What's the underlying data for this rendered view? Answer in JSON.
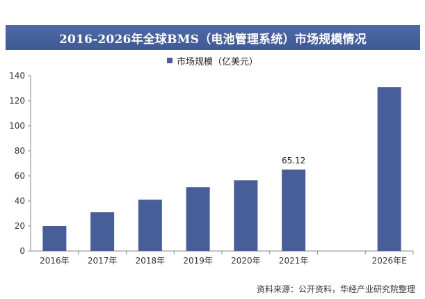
{
  "title": "2016-2026年全球BMS（电池管理系统）市场规模情况",
  "legend_label": "市场规模（亿美元）",
  "source_note": "资料来源：公开资料，华经产业研究院整理",
  "colors": {
    "bar": "#485e98",
    "title_bg": "#4a64a0",
    "axis": "#888888"
  },
  "chart_data": {
    "type": "bar",
    "categories": [
      "2016年",
      "2017年",
      "2018年",
      "2019年",
      "2020年",
      "2021年",
      "",
      "2026年E"
    ],
    "values": [
      20,
      31,
      41,
      51,
      56.5,
      65.12,
      null,
      131
    ],
    "data_labels": [
      "",
      "",
      "",
      "",
      "",
      "65.12",
      "",
      ""
    ],
    "ylim": [
      0,
      140
    ],
    "yticks": [
      0,
      20,
      40,
      60,
      80,
      100,
      120,
      140
    ],
    "ytick_labels": [
      "0",
      "20",
      "40",
      "60",
      "80",
      "100",
      "120",
      "140"
    ],
    "grid": false,
    "legend_position": "top-center"
  }
}
